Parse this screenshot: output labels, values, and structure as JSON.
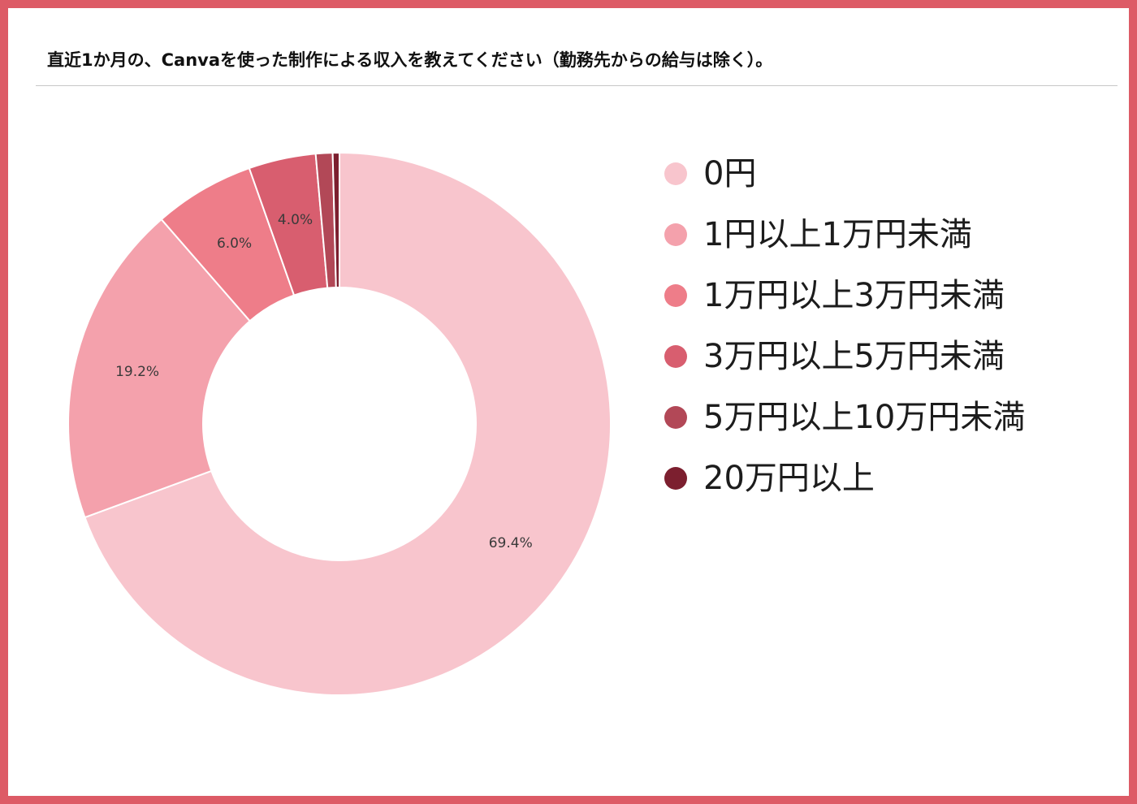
{
  "title": "直近1か月の、Canvaを使った制作による収入を教えてください（勤務先からの給与は除く）。",
  "chart_data": {
    "type": "pie",
    "style": "donut",
    "legend_position": "right",
    "categories": [
      "0円",
      "1円以上1万円未満",
      "1万円以上3万円未満",
      "3万円以上5万円未満",
      "5万円以上10万円未満",
      "20万円以上"
    ],
    "values": [
      69.4,
      19.2,
      6.0,
      4.0,
      1.0,
      0.4
    ],
    "labels": [
      "69.4%",
      "19.2%",
      "6.0%",
      "4.0%",
      "",
      ""
    ],
    "colors": [
      "#f8c5cd",
      "#f4a1ac",
      "#ee7d89",
      "#d85e6f",
      "#b24857",
      "#7c1f2f"
    ]
  }
}
